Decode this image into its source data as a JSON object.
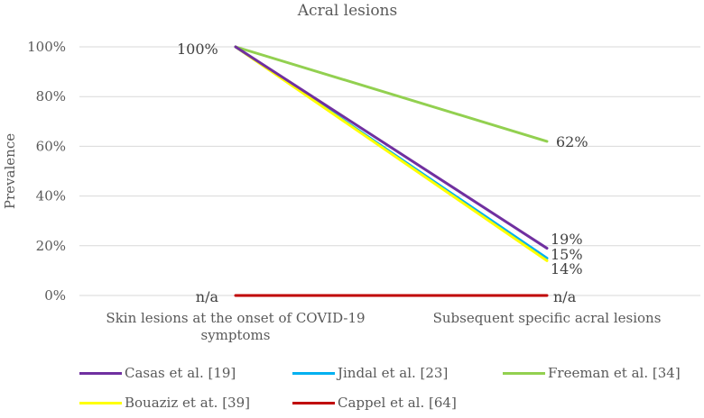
{
  "chart_data": {
    "type": "line",
    "title": "Acral lesions",
    "xlabel": "",
    "ylabel": "Prevalence",
    "categories": [
      "Skin lesions at the onset of COVID-19 symptoms",
      "Subsequent specific acral lesions"
    ],
    "category_lines": [
      [
        "Skin lesions at the onset of COVID-19",
        "symptoms"
      ],
      [
        "Subsequent specific acral lesions"
      ]
    ],
    "ylim": [
      0,
      100
    ],
    "yticks": [
      0,
      20,
      40,
      60,
      80,
      100
    ],
    "ytick_labels": [
      "0%",
      "20%",
      "40%",
      "60%",
      "80%",
      "100%"
    ],
    "grid": true,
    "legend_position": "bottom",
    "series": [
      {
        "name": "Casas et al. [19]",
        "color": "#7030A0",
        "values": [
          100,
          19
        ],
        "labels": [
          "100%",
          "19%"
        ]
      },
      {
        "name": "Jindal et al. [23]",
        "color": "#00B0F0",
        "values": [
          100,
          15
        ],
        "labels": [
          "",
          "15%"
        ]
      },
      {
        "name": "Freeman et al. [34]",
        "color": "#92D050",
        "values": [
          100,
          62
        ],
        "labels": [
          "",
          "62%"
        ]
      },
      {
        "name": "Bouaziz et at. [39]",
        "color": "#FFFF00",
        "values": [
          100,
          14
        ],
        "labels": [
          "",
          "14%"
        ]
      },
      {
        "name": "Cappel et al. [64]",
        "color": "#C00000",
        "values": [
          0,
          0
        ],
        "labels": [
          "n/a",
          "n/a"
        ]
      }
    ]
  }
}
